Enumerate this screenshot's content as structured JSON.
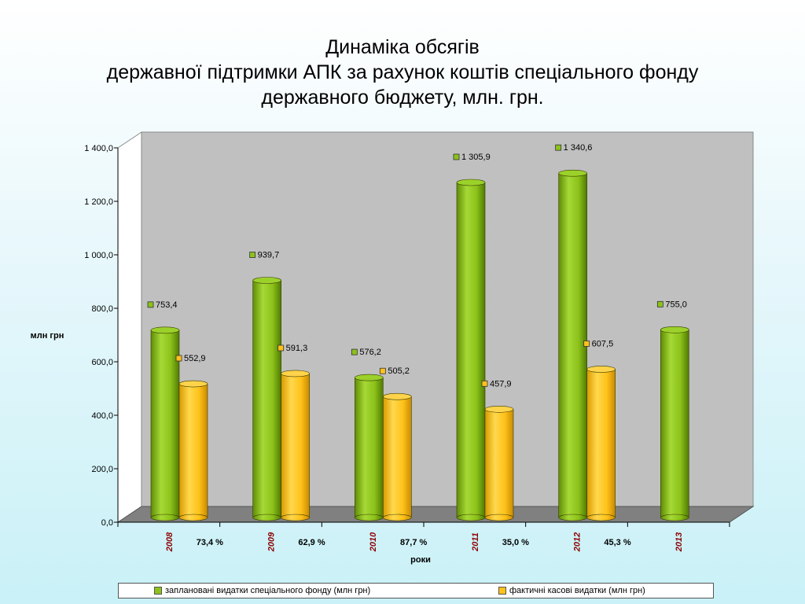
{
  "title": {
    "line1": "Динаміка обсягів",
    "line2": "державної підтримки АПК за рахунок коштів спеціального фонду",
    "line3": "державного бюджету, млн. грн."
  },
  "colors": {
    "planned": "#8cc21a",
    "actual": "#ffc21a",
    "wall": "#c0c0c0",
    "floor": "#808080",
    "year_label": "#8b0000"
  },
  "chart_data": {
    "type": "bar",
    "categories": [
      "2008",
      "2009",
      "2010",
      "2011",
      "2012",
      "2013"
    ],
    "series": [
      {
        "name": "заплановані видатки спеціального фонду (млн грн)",
        "values": [
          753.4,
          939.7,
          576.2,
          1305.9,
          1340.6,
          755.0
        ],
        "labels": [
          "753,4",
          "939,7",
          "576,2",
          "1 305,9",
          "1 340,6",
          "755,0"
        ]
      },
      {
        "name": "фактичні касові видатки (млн грн)",
        "values": [
          552.9,
          591.3,
          505.2,
          457.9,
          607.5,
          null
        ],
        "labels": [
          "552,9",
          "591,3",
          "505,2",
          "457,9",
          "607,5",
          ""
        ]
      }
    ],
    "percentages": [
      "73,4 %",
      "62,9 %",
      "87,7 %",
      "35,0 %",
      "45,3 %",
      ""
    ],
    "ylabel": "млн грн",
    "xlabel": "роки",
    "ylim": [
      0,
      1400
    ],
    "yticks": [
      0,
      200,
      400,
      600,
      800,
      1000,
      1200,
      1400
    ],
    "ytick_labels": [
      "0,0",
      "200,0",
      "400,0",
      "600,0",
      "800,0",
      "1 000,0",
      "1 200,0",
      "1 400,0"
    ],
    "grid": false,
    "legend_position": "bottom"
  }
}
